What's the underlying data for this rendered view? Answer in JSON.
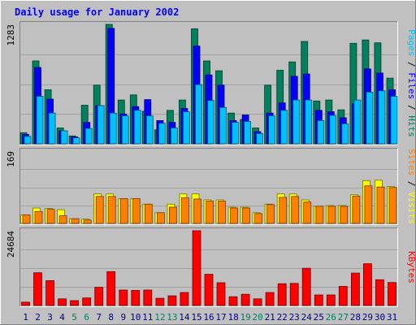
{
  "colors": {
    "background": "#c0c0c0",
    "panel": "#c0c0c0",
    "hits": "#00805c",
    "files": "#0000ff",
    "pages": "#00c0ff",
    "sites": "#ff8000",
    "visits": "#ffff00",
    "kbytes": "#ff0000",
    "title": "#0000ff",
    "weekend_day": "#00805c",
    "weekday_day": "#000080"
  },
  "chart_data": {
    "type": "bar",
    "title": "Daily usage for January 2002",
    "days": [
      1,
      2,
      3,
      4,
      5,
      6,
      7,
      8,
      9,
      10,
      11,
      12,
      13,
      14,
      15,
      16,
      17,
      18,
      19,
      20,
      21,
      22,
      23,
      24,
      25,
      26,
      27,
      28,
      29,
      30,
      31
    ],
    "weekend_days": [
      5,
      6,
      12,
      13,
      19,
      20,
      26,
      27
    ],
    "panels": [
      {
        "id": "hits-files-pages",
        "ymax_label": "1283",
        "ymax": 1283,
        "series": [
          {
            "name": "Hits",
            "key": "hits",
            "values": [
              120,
              890,
              580,
              170,
              85,
              415,
              630,
              1283,
              470,
              525,
              350,
              150,
              360,
              470,
              1235,
              890,
              785,
              330,
              260,
              170,
              630,
              790,
              880,
              1100,
              460,
              470,
              365,
              1080,
              1115,
              1085,
              705
            ]
          },
          {
            "name": "Files",
            "key": "files",
            "values": [
              100,
              820,
              480,
              140,
              75,
              230,
              410,
              1240,
              320,
              400,
              475,
              250,
              230,
              380,
              1050,
              740,
              630,
              250,
              310,
              130,
              330,
              440,
              725,
              750,
              360,
              345,
              280,
              430,
              805,
              760,
              580
            ]
          },
          {
            "name": "Pages",
            "key": "pages",
            "values": [
              80,
              510,
              330,
              140,
              65,
              165,
              410,
              330,
              300,
              360,
              300,
              220,
              170,
              345,
              635,
              465,
              390,
              230,
              240,
              110,
              300,
              360,
              470,
              470,
              250,
              305,
              215,
              470,
              555,
              570,
              510
            ]
          }
        ]
      },
      {
        "id": "sites-visits",
        "ymax_label": "169",
        "ymax": 169,
        "series": [
          {
            "name": "Visits",
            "key": "visits",
            "values": [
              20,
              36,
              35,
              32,
              11,
              10,
              69,
              69,
              58,
              58,
              45,
              25,
              45,
              69,
              69,
              55,
              55,
              38,
              38,
              25,
              45,
              69,
              69,
              55,
              40,
              42,
              42,
              67,
              100,
              101,
              86
            ]
          },
          {
            "name": "Sites",
            "key": "sites",
            "values": [
              20,
              28,
              33,
              18,
              11,
              8,
              63,
              63,
              58,
              58,
              45,
              25,
              38,
              60,
              57,
              52,
              52,
              36,
              36,
              23,
              44,
              61,
              63,
              50,
              40,
              40,
              40,
              64,
              88,
              85,
              84
            ]
          }
        ]
      },
      {
        "id": "kbytes",
        "ymax_label": "24684",
        "ymax": 24684,
        "series": [
          {
            "name": "KBytes",
            "key": "kbytes",
            "values": [
              1100,
              10800,
              8200,
              2200,
              1600,
              2500,
              6000,
              11200,
              5100,
              5000,
              5100,
              2400,
              3200,
              4300,
              24684,
              10300,
              7500,
              2900,
              3700,
              2200,
              4300,
              7200,
              7300,
              12300,
              3500,
              3500,
              6300,
              10700,
              13800,
              8500,
              7600
            ]
          }
        ]
      }
    ],
    "legend_top": [
      "Pages",
      "Files",
      "Hits"
    ],
    "legend_mid": [
      "Sites",
      "Visits"
    ],
    "legend_bot": [
      "KBytes"
    ],
    "legend_separator": "/"
  }
}
